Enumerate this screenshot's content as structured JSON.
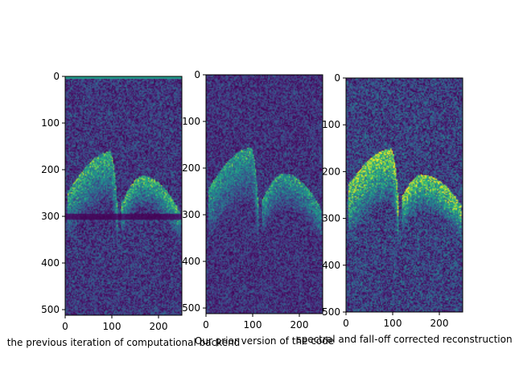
{
  "chart_data": [
    {
      "type": "heatmap",
      "colormap": "viridis",
      "xlabel": "the previous iteration of computational backend",
      "xlim": [
        0,
        250
      ],
      "ylim": [
        512,
        0
      ],
      "xticks": [
        0,
        100,
        200
      ],
      "yticks": [
        0,
        100,
        200,
        300,
        400,
        500
      ],
      "grid": false,
      "noise": 0.42,
      "arcs": [
        {
          "x0": 5,
          "x1": 110,
          "ytop_start": 245,
          "ytop_peak": 160,
          "peak_x": 95,
          "thickness": 110,
          "intensity": 0.7
        },
        {
          "x0": 120,
          "x1": 245,
          "ytop_start": 270,
          "ytop_peak": 212,
          "peak_x": 165,
          "thickness": 70,
          "intensity": 0.75
        }
      ],
      "dark_band": {
        "y": 300,
        "height": 12
      },
      "top_line": {
        "y": 0,
        "height": 5
      }
    },
    {
      "type": "heatmap",
      "colormap": "viridis",
      "xlabel": "Our prior version of the code",
      "xlim": [
        0,
        250
      ],
      "ylim": [
        512,
        0
      ],
      "xticks": [
        0,
        100,
        200
      ],
      "yticks": [
        0,
        100,
        200,
        300,
        400,
        500
      ],
      "grid": false,
      "noise": 0.38,
      "arcs": [
        {
          "x0": 5,
          "x1": 110,
          "ytop_start": 240,
          "ytop_peak": 155,
          "peak_x": 95,
          "thickness": 120,
          "intensity": 0.6
        },
        {
          "x0": 120,
          "x1": 245,
          "ytop_start": 265,
          "ytop_peak": 210,
          "peak_x": 165,
          "thickness": 80,
          "intensity": 0.6
        }
      ]
    },
    {
      "type": "heatmap",
      "colormap": "viridis",
      "xlabel": "spectral and fall-off corrected reconstruction",
      "xlim": [
        0,
        250
      ],
      "ylim": [
        500,
        0
      ],
      "xticks": [
        0,
        100,
        200
      ],
      "yticks": [
        0,
        100,
        200,
        300,
        400,
        500
      ],
      "grid": false,
      "noise": 0.5,
      "arcs": [
        {
          "x0": 5,
          "x1": 110,
          "ytop_start": 225,
          "ytop_peak": 150,
          "peak_x": 95,
          "thickness": 120,
          "intensity": 0.95
        },
        {
          "x0": 120,
          "x1": 245,
          "ytop_start": 250,
          "ytop_peak": 205,
          "peak_x": 160,
          "thickness": 80,
          "intensity": 0.95
        }
      ]
    }
  ]
}
